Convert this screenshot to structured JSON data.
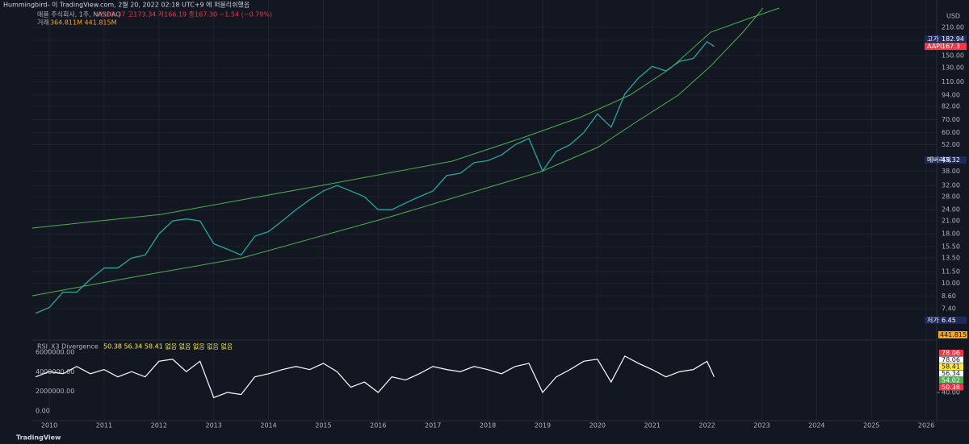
{
  "header": {
    "publisher": "Hummingbird- 이 TradingView.com, 2월 20, 2022 02:18 UTC+9 에 퍼블리쉬했음",
    "symbol": "애플 주식회사, 1주, NASDAQ",
    "ohlc": "시167.37 고173.34 저166.19 종167.30 −1.54 (−0.79%)",
    "volume_caption": "거래",
    "volume_values": "364.811M 441.815M",
    "currency": "USD"
  },
  "footer": {
    "brand": "TradingView"
  },
  "chart_data": [
    {
      "type": "line",
      "log_scale": true,
      "grid": true,
      "color": "#26a69a",
      "x": [
        2009.75,
        2010,
        2010.25,
        2010.5,
        2010.75,
        2011,
        2011.25,
        2011.5,
        2011.75,
        2012,
        2012.25,
        2012.5,
        2012.75,
        2013,
        2013.25,
        2013.5,
        2013.75,
        2014,
        2014.25,
        2014.5,
        2014.75,
        2015,
        2015.25,
        2015.5,
        2015.75,
        2016,
        2016.25,
        2016.5,
        2016.75,
        2017,
        2017.25,
        2017.5,
        2017.75,
        2018,
        2018.25,
        2018.5,
        2018.75,
        2019,
        2019.25,
        2019.5,
        2019.75,
        2020,
        2020.25,
        2020.5,
        2020.75,
        2021,
        2021.25,
        2021.5,
        2021.75,
        2022,
        2022.13
      ],
      "values": [
        7.0,
        7.5,
        9.0,
        9.0,
        10.5,
        12.0,
        12.0,
        13.5,
        14.0,
        18.0,
        21.0,
        21.5,
        21.0,
        16.0,
        15.0,
        14.0,
        17.5,
        18.5,
        21.0,
        24.0,
        27.0,
        30.0,
        32.0,
        30.0,
        28.0,
        24.0,
        24.0,
        26.0,
        28.0,
        30.0,
        36.0,
        37.0,
        42.0,
        43.0,
        46.0,
        52.0,
        56.0,
        38.0,
        48.0,
        52.0,
        60.0,
        75.0,
        64.0,
        95.0,
        115.0,
        132.0,
        125.0,
        140.0,
        145.0,
        177.0,
        167.3
      ],
      "xlim": [
        2009.69,
        2026.19
      ],
      "xticks": [
        2010,
        2011,
        2012,
        2013,
        2014,
        2015,
        2016,
        2017,
        2018,
        2019,
        2020,
        2021,
        2022,
        2023,
        2024,
        2025,
        2026
      ],
      "ylim": [
        5.19,
        264
      ],
      "yticks": [
        {
          "value": 210,
          "label": "210.00"
        },
        {
          "value": 180,
          "label": "180.00"
        },
        {
          "value": 150,
          "label": "150.00"
        },
        {
          "value": 130,
          "label": "130.00"
        },
        {
          "value": 110,
          "label": "110.00"
        },
        {
          "value": 94,
          "label": "94.00"
        },
        {
          "value": 82,
          "label": "82.00"
        },
        {
          "value": 70,
          "label": "70.00"
        },
        {
          "value": 60,
          "label": "60.00"
        },
        {
          "value": 52,
          "label": "52.00"
        },
        {
          "value": 38,
          "label": "38.00"
        },
        {
          "value": 32,
          "label": "32.00"
        },
        {
          "value": 28,
          "label": "28.00"
        },
        {
          "value": 24,
          "label": "24.00"
        },
        {
          "value": 21,
          "label": "21.00"
        },
        {
          "value": 18,
          "label": "18.00"
        },
        {
          "value": 15.5,
          "label": "15.50"
        },
        {
          "value": 13.5,
          "label": "13.50"
        },
        {
          "value": 11.5,
          "label": "11.50"
        },
        {
          "value": 10,
          "label": "10.00"
        },
        {
          "value": 8.6,
          "label": "8.60"
        },
        {
          "value": 7.4,
          "label": "7.40"
        }
      ],
      "annotations": [
        {
          "label": "고가",
          "value": 182.94,
          "color": "#1e2a5a"
        },
        {
          "label": "AAPL",
          "value": 167.3,
          "color": "#f23645"
        },
        {
          "label": "메버리지",
          "value": 43.32,
          "color": "#1e2a5a"
        },
        {
          "label": "저가",
          "value": 6.45,
          "color": "#1e2a5a"
        }
      ],
      "volume_label": "441.815M"
    },
    {
      "type": "line",
      "title": "RSI_X3 Divergence",
      "legend_values": "50.38 56.34 58.41 없음 없음 없음 없음 없음",
      "color": "#ffffff",
      "x": [
        2009.75,
        2010,
        2010.25,
        2010.5,
        2010.75,
        2011,
        2011.25,
        2011.5,
        2011.75,
        2012,
        2012.25,
        2012.5,
        2012.75,
        2013,
        2013.25,
        2013.5,
        2013.75,
        2014,
        2014.25,
        2014.5,
        2014.75,
        2015,
        2015.25,
        2015.5,
        2015.75,
        2016,
        2016.25,
        2016.5,
        2016.75,
        2017,
        2017.25,
        2017.5,
        2017.75,
        2018,
        2018.25,
        2018.5,
        2018.75,
        2019,
        2019.25,
        2019.5,
        2019.75,
        2020,
        2020.25,
        2020.5,
        2020.75,
        2021,
        2021.25,
        2021.5,
        2021.75,
        2022,
        2022.13
      ],
      "values": [
        55,
        60,
        58,
        65,
        58,
        62,
        55,
        60,
        55,
        70,
        72,
        60,
        70,
        35,
        40,
        38,
        55,
        58,
        62,
        65,
        62,
        68,
        60,
        45,
        50,
        40,
        55,
        52,
        58,
        65,
        62,
        60,
        65,
        62,
        58,
        65,
        68,
        40,
        55,
        62,
        70,
        72,
        50,
        75,
        68,
        62,
        55,
        60,
        62,
        70,
        55
      ],
      "xlim": [
        2009.69,
        2026.19
      ],
      "ylim": [
        -820000,
        6990000
      ],
      "yticks": [
        {
          "value": 6000000,
          "label": "6000000.00"
        },
        {
          "value": 4000000,
          "label": "4000000.00"
        },
        {
          "value": 2000000,
          "label": "2000000.00"
        },
        {
          "value": 0,
          "label": "0.00"
        }
      ],
      "y2lim": [
        14.4,
        88.1
      ],
      "y2ticks": [
        {
          "value": 40,
          "label": "40.00"
        }
      ],
      "last_values": [
        {
          "value": 78.06,
          "color": "#f23645"
        },
        {
          "value": 78.06,
          "color": "#ffffff"
        },
        {
          "value": 58.41,
          "color": "#ffeb3b"
        },
        {
          "value": 56.34,
          "color": "#ffffff"
        },
        {
          "value": 54.02,
          "color": "#4caf50"
        },
        {
          "value": 50.38,
          "color": "#f23645"
        }
      ]
    }
  ]
}
